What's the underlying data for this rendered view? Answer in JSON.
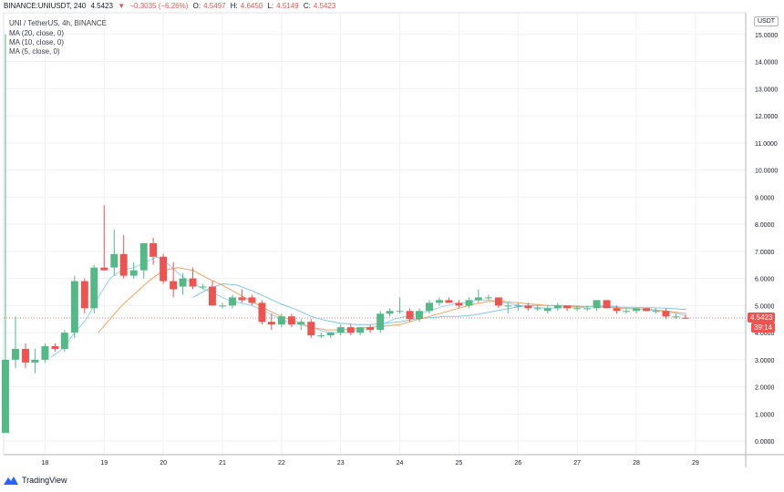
{
  "header": {
    "symbol_line": "BINANCE:UNIUSDT, 240",
    "last": "4.5423",
    "change": "−0.3035 (−6.26%)",
    "o_label": "O:",
    "o_value": "4.5497",
    "h_label": "H:",
    "h_value": "4.6450",
    "l_label": "L:",
    "l_value": "4.5149",
    "c_label": "C:",
    "c_value": "4.5423",
    "title": "UNI / TetherUS, 4h, BINANCE",
    "ma": [
      "MA (20, close, 0)",
      "MA (10, close, 0)",
      "MA (5, close, 0)"
    ]
  },
  "price_axis": {
    "unit": "USDT",
    "current_price": "4.5423",
    "countdown": "39:14"
  },
  "brand": {
    "name": "TradingView"
  },
  "colors": {
    "up": "#26a69a",
    "up_fill": "#53b987",
    "down": "#ef5350",
    "ma20": "#7fc7e8",
    "ma10": "#f4a15a",
    "ma5": "#8fd3e8",
    "grid": "#eef0f3",
    "current": "#ef5350"
  },
  "chart_data": {
    "type": "candlestick",
    "title": "UNI / TetherUS, 4h, BINANCE",
    "ylim": [
      -0.5,
      15.8
    ],
    "yticks": [
      0,
      1,
      2,
      3,
      4,
      5,
      6,
      7,
      8,
      9,
      10,
      11,
      12,
      13,
      14,
      15
    ],
    "ytick_labels": [
      "0.0000",
      "1.0000",
      "2.0000",
      "3.0000",
      "4.0000",
      "5.0000",
      "6.0000",
      "7.0000",
      "8.0000",
      "9.0000",
      "10.0000",
      "11.0000",
      "12.0000",
      "13.0000",
      "14.0000",
      "15.0000"
    ],
    "xlim": [
      17.3,
      29.85
    ],
    "xticks": [
      18,
      19,
      20,
      21,
      22,
      23,
      24,
      25,
      26,
      27,
      28,
      29
    ],
    "xtick_labels": [
      "18",
      "19",
      "20",
      "21",
      "22",
      "23",
      "24",
      "25",
      "26",
      "27",
      "28",
      "29"
    ],
    "candles": [
      {
        "t": 17.33,
        "o": 0.3,
        "h": 15.0,
        "l": 0.3,
        "c": 3.0
      },
      {
        "t": 17.5,
        "o": 3.0,
        "h": 4.6,
        "l": 2.7,
        "c": 3.4
      },
      {
        "t": 17.67,
        "o": 3.4,
        "h": 3.6,
        "l": 2.7,
        "c": 2.9
      },
      {
        "t": 17.83,
        "o": 2.9,
        "h": 3.4,
        "l": 2.5,
        "c": 3.0
      },
      {
        "t": 18.0,
        "o": 3.0,
        "h": 3.6,
        "l": 2.9,
        "c": 3.5
      },
      {
        "t": 18.17,
        "o": 3.5,
        "h": 3.6,
        "l": 3.3,
        "c": 3.4
      },
      {
        "t": 18.33,
        "o": 3.4,
        "h": 4.1,
        "l": 3.3,
        "c": 4.0
      },
      {
        "t": 18.5,
        "o": 4.0,
        "h": 6.1,
        "l": 3.8,
        "c": 5.9
      },
      {
        "t": 18.67,
        "o": 5.9,
        "h": 6.0,
        "l": 4.7,
        "c": 4.9
      },
      {
        "t": 18.83,
        "o": 4.9,
        "h": 6.5,
        "l": 4.7,
        "c": 6.4
      },
      {
        "t": 19.0,
        "o": 6.4,
        "h": 8.7,
        "l": 6.3,
        "c": 6.3
      },
      {
        "t": 19.17,
        "o": 6.4,
        "h": 7.8,
        "l": 6.1,
        "c": 6.9
      },
      {
        "t": 19.33,
        "o": 6.9,
        "h": 7.6,
        "l": 6.0,
        "c": 6.1
      },
      {
        "t": 19.5,
        "o": 6.1,
        "h": 6.6,
        "l": 6.0,
        "c": 6.3
      },
      {
        "t": 19.67,
        "o": 6.3,
        "h": 7.3,
        "l": 6.0,
        "c": 7.3
      },
      {
        "t": 19.83,
        "o": 7.3,
        "h": 7.5,
        "l": 6.5,
        "c": 6.8
      },
      {
        "t": 20.0,
        "o": 6.8,
        "h": 6.9,
        "l": 5.8,
        "c": 5.9
      },
      {
        "t": 20.17,
        "o": 5.9,
        "h": 6.6,
        "l": 5.3,
        "c": 5.6
      },
      {
        "t": 20.33,
        "o": 5.7,
        "h": 6.2,
        "l": 5.4,
        "c": 6.0
      },
      {
        "t": 20.5,
        "o": 6.0,
        "h": 6.4,
        "l": 5.6,
        "c": 5.7
      },
      {
        "t": 20.67,
        "o": 5.7,
        "h": 5.8,
        "l": 5.6,
        "c": 5.7
      },
      {
        "t": 20.83,
        "o": 5.7,
        "h": 5.9,
        "l": 5.0,
        "c": 5.0
      },
      {
        "t": 21.0,
        "o": 5.0,
        "h": 5.1,
        "l": 4.9,
        "c": 5.0
      },
      {
        "t": 21.17,
        "o": 5.0,
        "h": 5.4,
        "l": 4.9,
        "c": 5.3
      },
      {
        "t": 21.33,
        "o": 5.3,
        "h": 5.6,
        "l": 5.1,
        "c": 5.2
      },
      {
        "t": 21.5,
        "o": 5.3,
        "h": 5.4,
        "l": 5.0,
        "c": 5.1
      },
      {
        "t": 21.67,
        "o": 5.1,
        "h": 5.2,
        "l": 4.3,
        "c": 4.4
      },
      {
        "t": 21.83,
        "o": 4.4,
        "h": 4.7,
        "l": 4.1,
        "c": 4.3
      },
      {
        "t": 22.0,
        "o": 4.3,
        "h": 4.7,
        "l": 4.2,
        "c": 4.6
      },
      {
        "t": 22.17,
        "o": 4.6,
        "h": 4.7,
        "l": 4.2,
        "c": 4.3
      },
      {
        "t": 22.33,
        "o": 4.3,
        "h": 4.5,
        "l": 4.1,
        "c": 4.4
      },
      {
        "t": 22.5,
        "o": 4.4,
        "h": 4.5,
        "l": 3.8,
        "c": 3.9
      },
      {
        "t": 22.67,
        "o": 3.9,
        "h": 4.0,
        "l": 3.8,
        "c": 3.9
      },
      {
        "t": 22.83,
        "o": 3.9,
        "h": 4.0,
        "l": 3.8,
        "c": 4.0
      },
      {
        "t": 23.0,
        "o": 4.0,
        "h": 4.3,
        "l": 3.9,
        "c": 4.2
      },
      {
        "t": 23.17,
        "o": 4.2,
        "h": 4.3,
        "l": 3.9,
        "c": 4.0
      },
      {
        "t": 23.33,
        "o": 4.0,
        "h": 4.2,
        "l": 3.9,
        "c": 4.2
      },
      {
        "t": 23.5,
        "o": 4.2,
        "h": 4.3,
        "l": 4.0,
        "c": 4.1
      },
      {
        "t": 23.67,
        "o": 4.1,
        "h": 4.8,
        "l": 4.0,
        "c": 4.7
      },
      {
        "t": 23.83,
        "o": 4.7,
        "h": 4.9,
        "l": 4.6,
        "c": 4.8
      },
      {
        "t": 24.0,
        "o": 4.8,
        "h": 5.3,
        "l": 4.7,
        "c": 4.8
      },
      {
        "t": 24.17,
        "o": 4.8,
        "h": 4.9,
        "l": 4.4,
        "c": 4.5
      },
      {
        "t": 24.33,
        "o": 4.5,
        "h": 4.9,
        "l": 4.4,
        "c": 4.8
      },
      {
        "t": 24.5,
        "o": 4.8,
        "h": 5.2,
        "l": 4.7,
        "c": 5.1
      },
      {
        "t": 24.67,
        "o": 5.1,
        "h": 5.3,
        "l": 5.0,
        "c": 5.2
      },
      {
        "t": 24.83,
        "o": 5.2,
        "h": 5.3,
        "l": 5.1,
        "c": 5.1
      },
      {
        "t": 25.0,
        "o": 5.1,
        "h": 5.2,
        "l": 4.9,
        "c": 5.0
      },
      {
        "t": 25.17,
        "o": 5.0,
        "h": 5.3,
        "l": 4.9,
        "c": 5.2
      },
      {
        "t": 25.33,
        "o": 5.2,
        "h": 5.6,
        "l": 5.1,
        "c": 5.3
      },
      {
        "t": 25.5,
        "o": 5.3,
        "h": 5.4,
        "l": 5.2,
        "c": 5.3
      },
      {
        "t": 25.67,
        "o": 5.3,
        "h": 5.3,
        "l": 4.9,
        "c": 5.0
      },
      {
        "t": 25.83,
        "o": 5.0,
        "h": 5.1,
        "l": 4.7,
        "c": 5.0
      },
      {
        "t": 26.0,
        "o": 5.0,
        "h": 5.1,
        "l": 4.8,
        "c": 5.0
      },
      {
        "t": 26.17,
        "o": 5.0,
        "h": 5.1,
        "l": 4.8,
        "c": 4.9
      },
      {
        "t": 26.33,
        "o": 4.9,
        "h": 5.0,
        "l": 4.8,
        "c": 4.9
      },
      {
        "t": 26.5,
        "o": 4.8,
        "h": 5.0,
        "l": 4.7,
        "c": 4.9
      },
      {
        "t": 26.67,
        "o": 4.9,
        "h": 5.1,
        "l": 4.8,
        "c": 5.0
      },
      {
        "t": 26.83,
        "o": 5.0,
        "h": 5.0,
        "l": 4.8,
        "c": 4.9
      },
      {
        "t": 27.0,
        "o": 4.9,
        "h": 5.0,
        "l": 4.8,
        "c": 4.9
      },
      {
        "t": 27.17,
        "o": 4.9,
        "h": 5.0,
        "l": 4.8,
        "c": 4.9
      },
      {
        "t": 27.33,
        "o": 4.9,
        "h": 5.2,
        "l": 4.8,
        "c": 5.2
      },
      {
        "t": 27.5,
        "o": 5.2,
        "h": 5.2,
        "l": 4.9,
        "c": 4.9
      },
      {
        "t": 27.67,
        "o": 4.9,
        "h": 5.0,
        "l": 4.7,
        "c": 4.8
      },
      {
        "t": 27.83,
        "o": 4.8,
        "h": 4.9,
        "l": 4.7,
        "c": 4.8
      },
      {
        "t": 28.0,
        "o": 4.8,
        "h": 4.9,
        "l": 4.7,
        "c": 4.9
      },
      {
        "t": 28.17,
        "o": 4.9,
        "h": 4.9,
        "l": 4.8,
        "c": 4.8
      },
      {
        "t": 28.33,
        "o": 4.8,
        "h": 4.9,
        "l": 4.7,
        "c": 4.8
      },
      {
        "t": 28.5,
        "o": 4.8,
        "h": 4.9,
        "l": 4.5,
        "c": 4.6
      },
      {
        "t": 28.67,
        "o": 4.6,
        "h": 4.7,
        "l": 4.5,
        "c": 4.6
      },
      {
        "t": 28.83,
        "o": 4.55,
        "h": 4.65,
        "l": 4.51,
        "c": 4.54
      }
    ],
    "series": [
      {
        "name": "MA (20, close, 0)",
        "color": "#7fc7e8",
        "points": [
          [
            20.5,
            5.3
          ],
          [
            20.75,
            5.6
          ],
          [
            21.0,
            5.8
          ],
          [
            21.25,
            5.75
          ],
          [
            21.5,
            5.55
          ],
          [
            21.75,
            5.3
          ],
          [
            22.0,
            5.05
          ],
          [
            22.25,
            4.85
          ],
          [
            22.5,
            4.6
          ],
          [
            22.75,
            4.45
          ],
          [
            23.0,
            4.35
          ],
          [
            23.25,
            4.3
          ],
          [
            23.5,
            4.3
          ],
          [
            23.75,
            4.35
          ],
          [
            24.0,
            4.4
          ],
          [
            24.25,
            4.5
          ],
          [
            24.5,
            4.55
          ],
          [
            24.75,
            4.6
          ],
          [
            25.0,
            4.6
          ],
          [
            25.25,
            4.65
          ],
          [
            25.5,
            4.75
          ],
          [
            25.75,
            4.85
          ],
          [
            26.0,
            4.95
          ],
          [
            26.25,
            5.0
          ],
          [
            26.5,
            5.0
          ],
          [
            26.75,
            5.0
          ],
          [
            27.0,
            4.98
          ],
          [
            27.25,
            4.96
          ],
          [
            27.5,
            4.95
          ],
          [
            27.75,
            4.94
          ],
          [
            28.0,
            4.93
          ],
          [
            28.25,
            4.92
          ],
          [
            28.5,
            4.9
          ],
          [
            28.85,
            4.85
          ]
        ]
      },
      {
        "name": "MA (10, close, 0)",
        "color": "#f4a15a",
        "points": [
          [
            18.9,
            4.0
          ],
          [
            19.1,
            4.5
          ],
          [
            19.3,
            5.0
          ],
          [
            19.5,
            5.4
          ],
          [
            19.75,
            5.9
          ],
          [
            20.0,
            6.3
          ],
          [
            20.25,
            6.4
          ],
          [
            20.5,
            6.3
          ],
          [
            20.75,
            6.0
          ],
          [
            21.0,
            5.75
          ],
          [
            21.25,
            5.45
          ],
          [
            21.5,
            5.15
          ],
          [
            21.75,
            4.85
          ],
          [
            22.0,
            4.6
          ],
          [
            22.25,
            4.4
          ],
          [
            22.5,
            4.2
          ],
          [
            22.75,
            4.1
          ],
          [
            23.0,
            4.1
          ],
          [
            23.25,
            4.15
          ],
          [
            23.5,
            4.2
          ],
          [
            23.75,
            4.25
          ],
          [
            24.0,
            4.3
          ],
          [
            24.25,
            4.45
          ],
          [
            24.5,
            4.6
          ],
          [
            24.75,
            4.75
          ],
          [
            25.0,
            4.9
          ],
          [
            25.25,
            5.05
          ],
          [
            25.5,
            5.15
          ],
          [
            25.75,
            5.15
          ],
          [
            26.0,
            5.1
          ],
          [
            26.25,
            5.05
          ],
          [
            26.5,
            5.0
          ],
          [
            26.75,
            4.98
          ],
          [
            27.0,
            4.95
          ],
          [
            27.25,
            4.95
          ],
          [
            27.5,
            4.93
          ],
          [
            27.75,
            4.9
          ],
          [
            28.0,
            4.88
          ],
          [
            28.25,
            4.85
          ],
          [
            28.5,
            4.8
          ],
          [
            28.85,
            4.7
          ]
        ]
      },
      {
        "name": "MA (5, close, 0)",
        "color": "#8fd3e8",
        "points": [
          [
            18.1,
            3.1
          ],
          [
            18.3,
            3.4
          ],
          [
            18.5,
            4.0
          ],
          [
            18.7,
            4.5
          ],
          [
            18.9,
            5.3
          ],
          [
            19.1,
            6.0
          ],
          [
            19.3,
            6.3
          ],
          [
            19.5,
            6.4
          ],
          [
            19.7,
            6.6
          ],
          [
            19.9,
            6.8
          ],
          [
            20.1,
            6.5
          ],
          [
            20.3,
            6.1
          ],
          [
            20.5,
            5.8
          ],
          [
            20.7,
            5.6
          ],
          [
            20.9,
            5.4
          ],
          [
            21.1,
            5.2
          ],
          [
            21.3,
            5.1
          ],
          [
            21.5,
            5.0
          ],
          [
            21.7,
            4.8
          ],
          [
            21.9,
            4.6
          ],
          [
            22.1,
            4.4
          ],
          [
            22.3,
            4.3
          ],
          [
            22.5,
            4.2
          ],
          [
            22.7,
            4.05
          ],
          [
            22.9,
            4.0
          ],
          [
            23.1,
            4.0
          ],
          [
            23.3,
            4.1
          ],
          [
            23.5,
            4.15
          ],
          [
            23.7,
            4.3
          ],
          [
            23.9,
            4.5
          ],
          [
            24.1,
            4.6
          ],
          [
            24.3,
            4.7
          ],
          [
            24.5,
            4.8
          ],
          [
            24.7,
            4.95
          ],
          [
            24.9,
            5.05
          ],
          [
            25.1,
            5.1
          ],
          [
            25.3,
            5.2
          ],
          [
            25.5,
            5.2
          ],
          [
            25.7,
            5.15
          ],
          [
            25.9,
            5.05
          ],
          [
            26.1,
            4.98
          ],
          [
            26.3,
            4.93
          ],
          [
            26.5,
            4.9
          ],
          [
            26.7,
            4.92
          ],
          [
            26.9,
            4.93
          ],
          [
            27.1,
            4.93
          ],
          [
            27.3,
            4.98
          ],
          [
            27.5,
            5.0
          ],
          [
            27.7,
            4.95
          ],
          [
            27.9,
            4.88
          ],
          [
            28.1,
            4.85
          ],
          [
            28.3,
            4.82
          ],
          [
            28.5,
            4.78
          ],
          [
            28.7,
            4.7
          ],
          [
            28.85,
            4.62
          ]
        ]
      }
    ],
    "current_price": 4.5423
  }
}
